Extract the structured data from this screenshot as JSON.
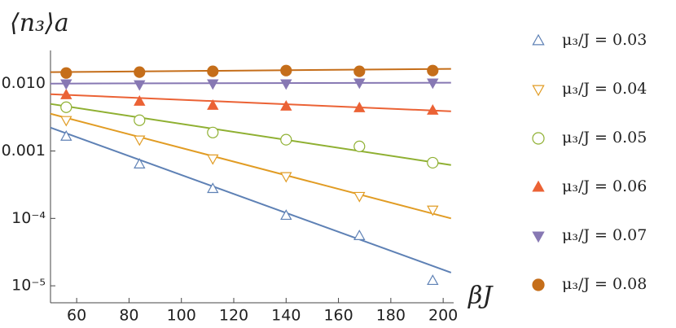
{
  "chart_data": {
    "type": "scatter",
    "y_label": "⟨n₃⟩a",
    "x_label": "βJ",
    "log_y": true,
    "x": [
      56,
      84,
      112,
      140,
      168,
      196
    ],
    "xlim": [
      50,
      204
    ],
    "xticks": [
      60,
      80,
      100,
      120,
      140,
      160,
      180,
      200
    ],
    "ylim": [
      5.6e-06,
      0.031
    ],
    "yticks": [
      {
        "value": 0.01,
        "label": "0.010"
      },
      {
        "value": 0.001,
        "label": "0.001"
      },
      {
        "value": 0.0001,
        "label": "10⁻⁴"
      },
      {
        "value": 1e-05,
        "label": "10⁻⁵"
      }
    ],
    "legend": "right",
    "series": [
      {
        "name": "μ₃/J = 0.03",
        "color": "#5e81b5",
        "marker": "triangle-up",
        "filled": false,
        "values": [
          0.00164,
          0.000635,
          0.000275,
          0.00011,
          5.5e-05,
          1.19e-05
        ],
        "fit_x": [
          50,
          203
        ],
        "fit_values": [
          0.00222,
          1.57e-05
        ]
      },
      {
        "name": "μ₃/J = 0.04",
        "color": "#e19c24",
        "marker": "triangle-down",
        "filled": false,
        "values": [
          0.00286,
          0.00147,
          0.00077,
          0.00042,
          0.000214,
          0.000134
        ],
        "fit_x": [
          50,
          203
        ],
        "fit_values": [
          0.00357,
          0.0001
        ]
      },
      {
        "name": "μ₃/J = 0.05",
        "color": "#8fb032",
        "marker": "circle",
        "filled": false,
        "values": [
          0.00446,
          0.00286,
          0.00188,
          0.00147,
          0.00117,
          0.00067
        ],
        "fit_x": [
          50,
          203
        ],
        "fit_values": [
          0.00499,
          0.00062
        ]
      },
      {
        "name": "μ₃/J = 0.06",
        "color": "#eb6235",
        "marker": "triangle-up",
        "filled": true,
        "values": [
          0.00678,
          0.00542,
          0.00472,
          0.00458,
          0.00434,
          0.00399
        ],
        "fit_x": [
          50,
          203
        ],
        "fit_values": [
          0.00696,
          0.00388
        ]
      },
      {
        "name": "μ₃/J = 0.07",
        "color": "#8778b3",
        "marker": "triangle-down",
        "filled": true,
        "values": [
          0.01,
          0.0097,
          0.01,
          0.01,
          0.0103,
          0.0103
        ],
        "fit_x": [
          50,
          203
        ],
        "fit_values": [
          0.01,
          0.0103
        ]
      },
      {
        "name": "μ₃/J = 0.08",
        "color": "#c56e1a",
        "marker": "circle",
        "filled": true,
        "values": [
          0.01436,
          0.0148,
          0.0152,
          0.0156,
          0.0152,
          0.0156
        ],
        "fit_x": [
          50,
          203
        ],
        "fit_values": [
          0.0148,
          0.0165
        ]
      }
    ]
  }
}
